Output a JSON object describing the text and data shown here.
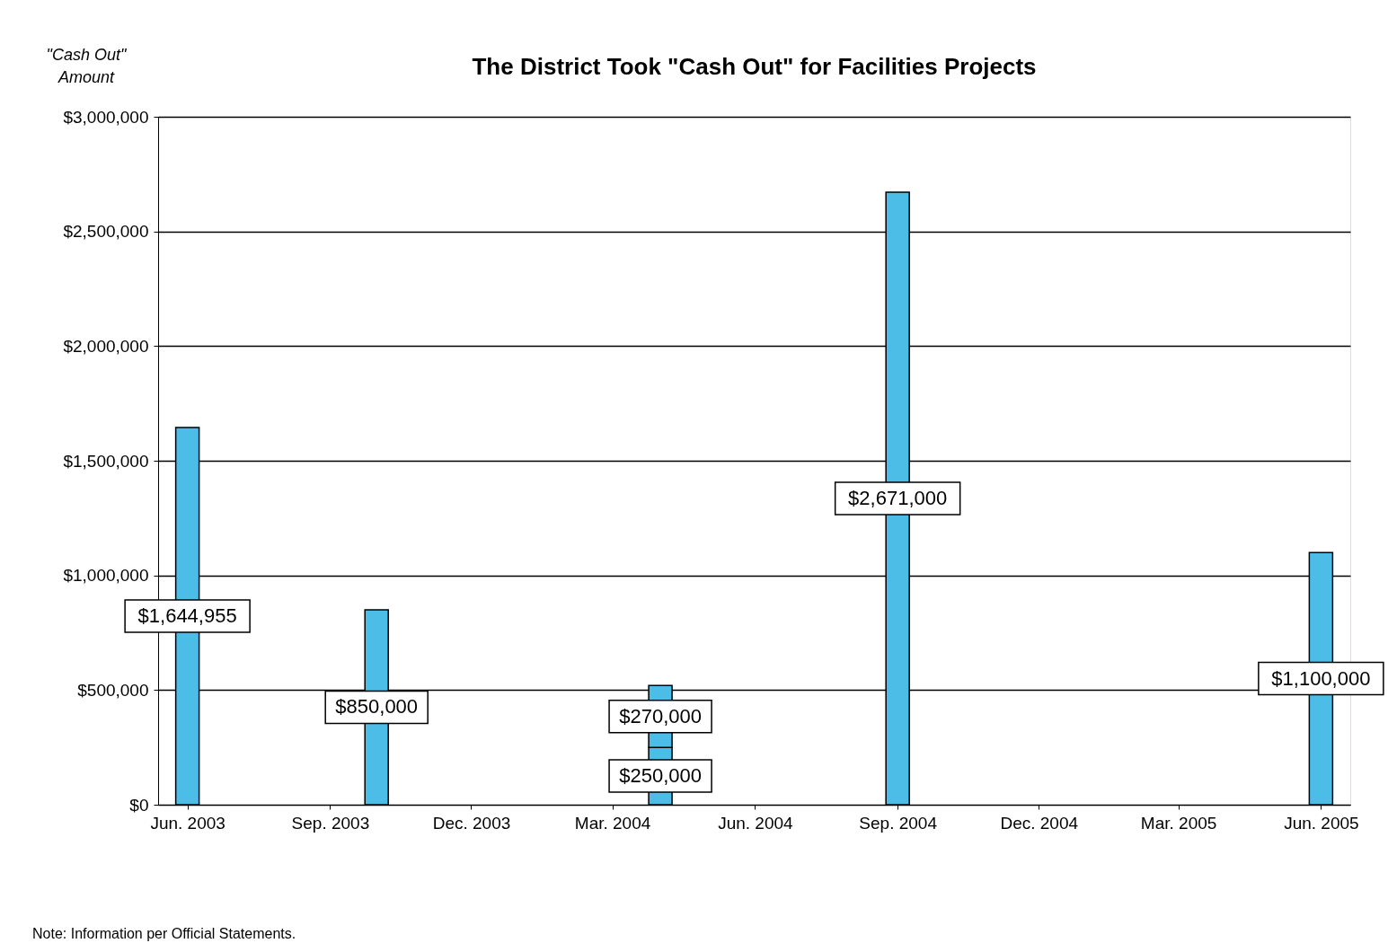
{
  "chart_data": {
    "type": "bar",
    "title": "The District Took \"Cash Out\" for Facilities Projects",
    "ylabel": "\"Cash Out\"\nAmount",
    "x": [
      "2003-06",
      "2003-10",
      "2004-04",
      "2004-09",
      "2005-06"
    ],
    "xlim": [
      "2003-05-16",
      "2005-06-17"
    ],
    "xticks": [
      {
        "value": "2003-06",
        "label": "Jun. 2003"
      },
      {
        "value": "2003-09",
        "label": "Sep. 2003"
      },
      {
        "value": "2003-12",
        "label": "Dec. 2003"
      },
      {
        "value": "2004-03",
        "label": "Mar. 2004"
      },
      {
        "value": "2004-06",
        "label": "Jun. 2004"
      },
      {
        "value": "2004-09",
        "label": "Sep. 2004"
      },
      {
        "value": "2004-12",
        "label": "Dec. 2004"
      },
      {
        "value": "2005-03",
        "label": "Mar. 2005"
      },
      {
        "value": "2005-06",
        "label": "Jun. 2005"
      }
    ],
    "ylim": [
      0,
      3000000
    ],
    "yticks": [
      {
        "value": 0,
        "label": "$0"
      },
      {
        "value": 500000,
        "label": "$500,000"
      },
      {
        "value": 1000000,
        "label": "$1,000,000"
      },
      {
        "value": 1500000,
        "label": "$1,500,000"
      },
      {
        "value": 2000000,
        "label": "$2,000,000"
      },
      {
        "value": 2500000,
        "label": "$2,500,000"
      },
      {
        "value": 3000000,
        "label": "$3,000,000"
      }
    ],
    "stacked": true,
    "series": [
      {
        "color": "#4bbde6",
        "values": [
          1644955,
          850000,
          250000,
          2671000,
          1100000
        ],
        "value_labels": [
          "$1,644,955",
          "$850,000",
          "$250,000",
          "$2,671,000",
          "$1,100,000"
        ]
      },
      {
        "color": "#4bbde6",
        "values": [
          null,
          null,
          270000,
          null,
          null
        ],
        "value_labels": [
          null,
          null,
          "$270,000",
          null,
          null
        ]
      }
    ],
    "grid": "y",
    "annotations": [
      "Note: Information per Official Statements."
    ]
  }
}
